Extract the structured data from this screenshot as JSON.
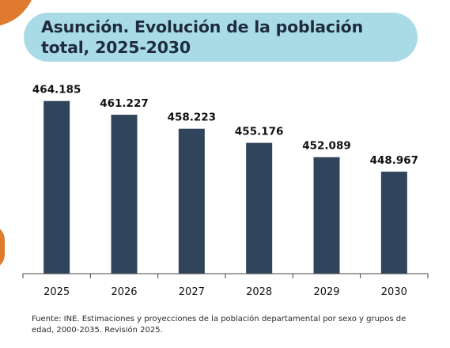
{
  "title": "Asunción. Evolución de la población total, 2025-2030",
  "source_note": "Fuente: INE. Estimaciones y proyecciones de la población departamental por sexo y grupos de edad, 2000-2035. Revisión 2025.",
  "colors": {
    "bar": "#30445c",
    "title_bg": "#a9dbe7",
    "accent": "#e07a2e"
  },
  "chart_data": {
    "type": "bar",
    "title": "Asunción. Evolución de la población total, 2025-2030",
    "categories": [
      "2025",
      "2026",
      "2027",
      "2028",
      "2029",
      "2030"
    ],
    "values": [
      464185,
      461227,
      458223,
      455176,
      452089,
      448967
    ],
    "value_labels": [
      "464.185",
      "461.227",
      "458.223",
      "455.176",
      "452.089",
      "448.967"
    ],
    "xlabel": "",
    "ylabel": "",
    "ylim": [
      427000,
      465500
    ],
    "grid": false,
    "legend": "none"
  }
}
